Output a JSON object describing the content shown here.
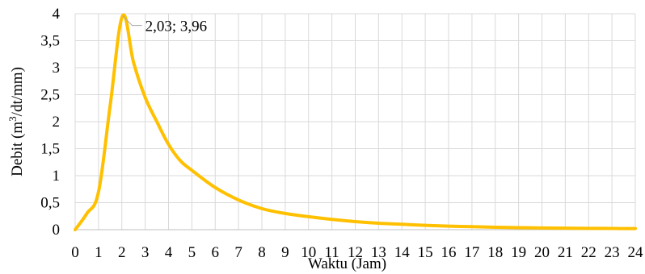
{
  "chart_data": {
    "type": "line",
    "xlabel": "Waktu (Jam)",
    "ylabel": "Debit (m³/dt/mm)",
    "xlim": [
      0,
      24
    ],
    "ylim": [
      0,
      4
    ],
    "x_ticks": [
      "0",
      "1",
      "2",
      "3",
      "4",
      "5",
      "6",
      "7",
      "8",
      "9",
      "10",
      "11",
      "12",
      "13",
      "14",
      "15",
      "16",
      "17",
      "18",
      "19",
      "20",
      "21",
      "22",
      "23",
      "24"
    ],
    "y_ticks": [
      "0",
      "0,5",
      "1",
      "1,5",
      "2",
      "2,5",
      "3",
      "3,5",
      "4"
    ],
    "grid": true,
    "series": [
      {
        "color": "#FFC000",
        "x": [
          0,
          0.5,
          1,
          1.5,
          2.03,
          2.5,
          3,
          3.5,
          4,
          4.5,
          5,
          6,
          7,
          8,
          9,
          10,
          11,
          12,
          13,
          14,
          15,
          16,
          17,
          18,
          19,
          20,
          21,
          22,
          23,
          24
        ],
        "y": [
          0,
          0.3,
          0.7,
          2.3,
          3.96,
          3.1,
          2.45,
          2.0,
          1.58,
          1.28,
          1.1,
          0.78,
          0.55,
          0.39,
          0.3,
          0.24,
          0.19,
          0.15,
          0.12,
          0.1,
          0.08,
          0.065,
          0.055,
          0.045,
          0.038,
          0.032,
          0.028,
          0.025,
          0.022,
          0.02
        ]
      }
    ],
    "annotation": {
      "text": "2,03; 3,96",
      "x": 2.03,
      "y": 3.96
    }
  }
}
